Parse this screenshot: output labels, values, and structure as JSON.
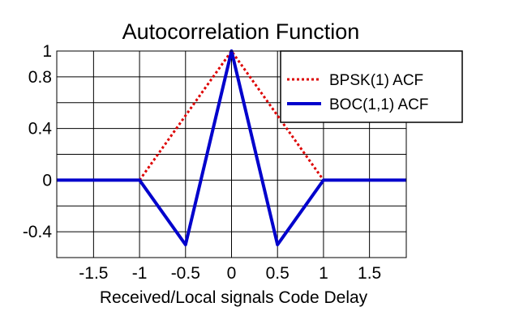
{
  "chart_data": {
    "type": "line",
    "title": "Autocorrelation Function",
    "xlabel": "Received/Local signals Code Delay",
    "ylabel": "",
    "xlim": [
      -1.9,
      1.9
    ],
    "ylim": [
      -0.6,
      1.0
    ],
    "x_ticks": [
      -1.5,
      -1,
      -0.5,
      0,
      0.5,
      1,
      1.5
    ],
    "x_tick_labels": [
      "-1.5",
      "-1",
      "-0.5",
      "0",
      "0.5",
      "1",
      "1.5"
    ],
    "y_tick_labels_shown": [
      {
        "value": 1,
        "label": "1"
      },
      {
        "value": 0.8,
        "label": "0.8"
      },
      {
        "value": 0.4,
        "label": "0.4"
      },
      {
        "value": 0,
        "label": "0"
      },
      {
        "value": -0.4,
        "label": "-0.4"
      }
    ],
    "y_gridlines": [
      -0.6,
      -0.4,
      -0.2,
      0,
      0.2,
      0.4,
      0.6,
      0.8,
      1.0
    ],
    "grid": true,
    "legend_position": "top-right",
    "series": [
      {
        "name": "BPSK(1) ACF",
        "color": "#dd0000",
        "style": "dotted",
        "x": [
          -1,
          0,
          1
        ],
        "y": [
          0,
          1,
          0
        ]
      },
      {
        "name": "BOC(1,1) ACF",
        "color": "#0000cc",
        "style": "solid",
        "x": [
          -1.9,
          -1,
          -0.5,
          0,
          0.5,
          1,
          1.9
        ],
        "y": [
          0,
          0,
          -0.5,
          1,
          -0.5,
          0,
          0
        ]
      }
    ]
  }
}
